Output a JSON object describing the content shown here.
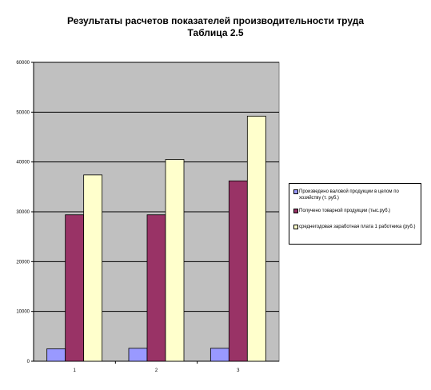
{
  "chart_data": {
    "type": "bar",
    "title": "Результаты расчетов показателей производительности труда",
    "subtitle": "Таблица 2.5",
    "categories": [
      "1",
      "2",
      "3"
    ],
    "series": [
      {
        "name": "Произведено валовой продукции в целом по хозяйству (т. руб.)",
        "values": [
          2500,
          2600,
          2600
        ],
        "color": "#9999ff"
      },
      {
        "name": "Получено товарной продукции (тыс.руб.)",
        "values": [
          29400,
          29400,
          36200
        ],
        "color": "#993366"
      },
      {
        "name": "среднегодовая заработная плата 1 работника (руб.)",
        "values": [
          37400,
          40500,
          49200
        ],
        "color": "#ffffcc"
      }
    ],
    "ylim": [
      0,
      60000
    ],
    "yticks": [
      0,
      10000,
      20000,
      30000,
      40000,
      50000,
      60000
    ],
    "grid": true,
    "plot_background": "#c0c0c0",
    "legend": "right"
  }
}
